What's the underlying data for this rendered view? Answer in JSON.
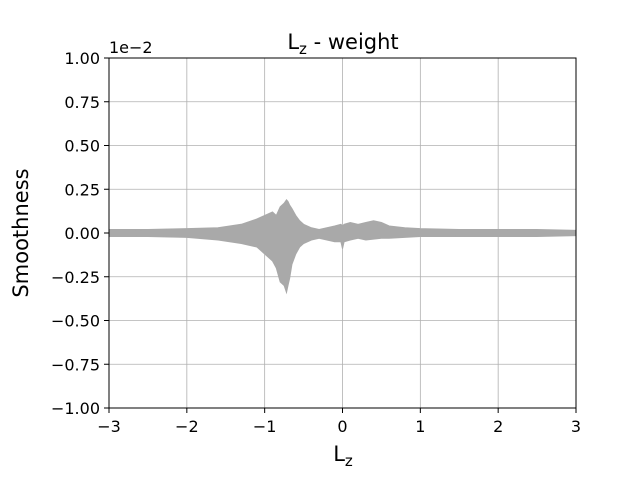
{
  "chart_data": {
    "type": "area",
    "title": {
      "main": "L",
      "sub": "z",
      "rest": " - weight"
    },
    "xlabel": {
      "main": "L",
      "sub": "z"
    },
    "ylabel": "Smoothness",
    "y_scale_label": "1e−2",
    "xlim": [
      -3,
      3
    ],
    "ylim": [
      -1.0,
      1.0
    ],
    "grid": true,
    "x_ticks": [
      -3,
      -2,
      -1,
      0,
      1,
      2,
      3
    ],
    "x_tick_labels": [
      "−3",
      "−2",
      "−1",
      "0",
      "1",
      "2",
      "3"
    ],
    "y_ticks": [
      1.0,
      0.75,
      0.5,
      0.25,
      0.0,
      -0.25,
      -0.5,
      -0.75,
      -1.0
    ],
    "y_tick_labels": [
      "1.00",
      "0.75",
      "0.50",
      "0.25",
      "0.00",
      "−0.25",
      "−0.50",
      "−0.75",
      "−1.00"
    ],
    "series": [
      {
        "color": "#a9a9a9",
        "x": [
          -3.0,
          -2.5,
          -2.0,
          -1.6,
          -1.3,
          -1.1,
          -1.0,
          -0.9,
          -0.85,
          -0.8,
          -0.75,
          -0.72,
          -0.7,
          -0.68,
          -0.65,
          -0.6,
          -0.55,
          -0.5,
          -0.4,
          -0.3,
          -0.2,
          -0.1,
          -0.02,
          0.0,
          0.02,
          0.1,
          0.2,
          0.3,
          0.4,
          0.5,
          0.6,
          0.8,
          1.0,
          1.5,
          2.0,
          2.5,
          3.0
        ],
        "upper": [
          0.02,
          0.02,
          0.025,
          0.03,
          0.05,
          0.08,
          0.1,
          0.12,
          0.1,
          0.15,
          0.17,
          0.19,
          0.18,
          0.16,
          0.14,
          0.1,
          0.07,
          0.05,
          0.03,
          0.02,
          0.03,
          0.04,
          0.05,
          0.04,
          0.05,
          0.06,
          0.05,
          0.06,
          0.07,
          0.06,
          0.04,
          0.03,
          0.025,
          0.02,
          0.02,
          0.02,
          0.015
        ],
        "lower": [
          -0.02,
          -0.02,
          -0.025,
          -0.04,
          -0.06,
          -0.08,
          -0.12,
          -0.16,
          -0.2,
          -0.28,
          -0.3,
          -0.34,
          -0.3,
          -0.26,
          -0.18,
          -0.12,
          -0.08,
          -0.06,
          -0.04,
          -0.03,
          -0.04,
          -0.05,
          -0.05,
          -0.09,
          -0.05,
          -0.04,
          -0.03,
          -0.04,
          -0.035,
          -0.03,
          -0.03,
          -0.025,
          -0.02,
          -0.02,
          -0.02,
          -0.02,
          -0.015
        ]
      }
    ]
  }
}
